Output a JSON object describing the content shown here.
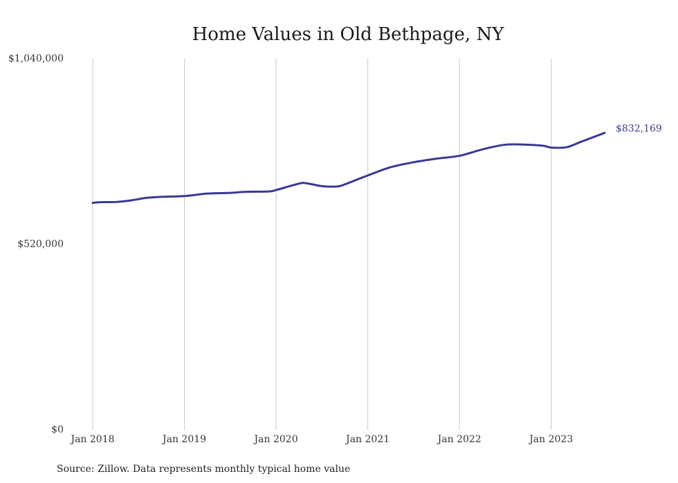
{
  "chart_data": {
    "type": "line",
    "title": "Home Values in Old Bethpage, NY",
    "xlabel": "",
    "ylabel": "",
    "ylim": [
      0,
      1040000
    ],
    "y_ticks": [
      {
        "value": 0,
        "label": "$0"
      },
      {
        "value": 520000,
        "label": "$520,000"
      },
      {
        "value": 1040000,
        "label": "$1,040,000"
      }
    ],
    "x_ticks": [
      {
        "value": 2018.0,
        "label": "Jan 2018"
      },
      {
        "value": 2019.0,
        "label": "Jan 2019"
      },
      {
        "value": 2020.0,
        "label": "Jan 2020"
      },
      {
        "value": 2021.0,
        "label": "Jan 2021"
      },
      {
        "value": 2022.0,
        "label": "Jan 2022"
      },
      {
        "value": 2023.0,
        "label": "Jan 2023"
      }
    ],
    "xlim": [
      2018.0,
      2023.583
    ],
    "grid": "vertical",
    "line_color": "#3b3794",
    "series": [
      {
        "x": [
          2018.0,
          2018.083,
          2018.25,
          2018.417,
          2018.583,
          2018.75,
          2019.0,
          2019.25,
          2019.5,
          2019.667,
          2019.917,
          2020.0,
          2020.25,
          2020.333,
          2020.5,
          2020.667,
          2020.75,
          2021.0,
          2021.25,
          2021.5,
          2021.75,
          2022.0,
          2022.25,
          2022.5,
          2022.75,
          2022.917,
          2023.0,
          2023.167,
          2023.333,
          2023.583
        ],
        "y": [
          636000,
          638000,
          638500,
          643000,
          650000,
          653000,
          655000,
          662000,
          664000,
          667000,
          668000,
          672000,
          690000,
          691000,
          683000,
          682000,
          688000,
          713000,
          736000,
          750000,
          760000,
          768000,
          786000,
          799000,
          799000,
          796000,
          791000,
          792000,
          808000,
          832169
        ]
      }
    ],
    "end_label": "$832,169",
    "source": "Source: Zillow. Data represents monthly typical home value"
  }
}
